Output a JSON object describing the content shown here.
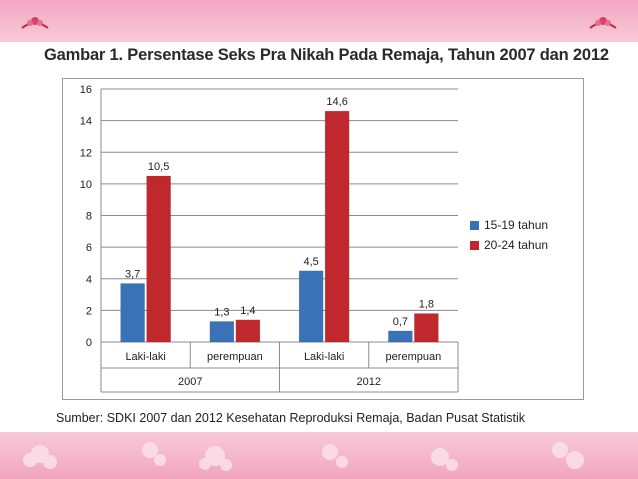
{
  "title": "Gambar 1. Persentase Seks Pra Nikah Pada Remaja, Tahun 2007 dan 2012",
  "source": "Sumber: SDKI 2007 dan 2012 Kesehatan Reproduksi Remaja, Badan Pusat Statistik",
  "colors": {
    "series_15_19": "#3a72b8",
    "series_20_24": "#c0282e",
    "background_pink": "#f7c9d8"
  },
  "icons": [
    "flower-left-icon",
    "flower-right-icon"
  ],
  "chart_data": {
    "type": "bar",
    "title": "",
    "xlabel": "",
    "ylabel": "",
    "ylim": [
      0,
      16
    ],
    "yticks": [
      0,
      2,
      4,
      6,
      8,
      10,
      12,
      14,
      16
    ],
    "grid": true,
    "legend_position": "right",
    "categories": [
      "Laki-laki",
      "perempuan",
      "Laki-laki",
      "perempuan"
    ],
    "groups": [
      {
        "label": "2007",
        "categories": [
          "Laki-laki",
          "perempuan"
        ]
      },
      {
        "label": "2012",
        "categories": [
          "Laki-laki",
          "perempuan"
        ]
      }
    ],
    "series": [
      {
        "name": "15-19 tahun",
        "values": [
          3.7,
          1.3,
          4.5,
          0.7
        ],
        "labels": [
          "3,7",
          "1,3",
          "4,5",
          "0,7"
        ]
      },
      {
        "name": "20-24 tahun",
        "values": [
          10.5,
          1.4,
          14.6,
          1.8
        ],
        "labels": [
          "10,5",
          "1,4",
          "14,6",
          "1,8"
        ]
      }
    ]
  }
}
